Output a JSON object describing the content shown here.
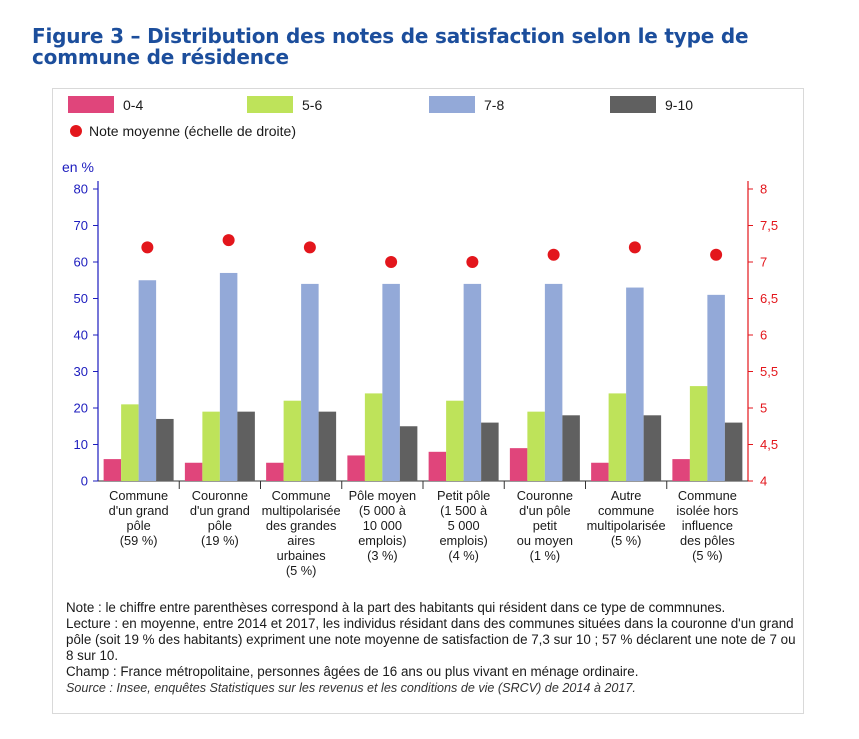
{
  "title": "Figure 3 – Distribution des notes de satisfaction selon le type de commune de résidence",
  "colors": {
    "s0": "#e0457b",
    "s1": "#bee35a",
    "s2": "#93a9d8",
    "s3": "#606060",
    "dot": "#e3161c",
    "left_axis": "#1c1cbe",
    "right_axis": "#e3161c",
    "title": "#1c4e9c"
  },
  "chart_data": {
    "type": "bar",
    "left_unit": "en %",
    "ylim": [
      0,
      80
    ],
    "yticks": [
      "0",
      "10",
      "20",
      "30",
      "40",
      "50",
      "60",
      "70",
      "80"
    ],
    "y2lim": [
      4,
      8
    ],
    "y2ticks": [
      "4",
      "4,5",
      "5",
      "5,5",
      "6",
      "6,5",
      "7",
      "7,5",
      "8"
    ],
    "grid": false,
    "legend_position": "top",
    "categories": [
      [
        "Commune",
        "d'un grand",
        "pôle",
        "(59 %)"
      ],
      [
        "Couronne",
        "d'un grand",
        "pôle",
        "(19 %)"
      ],
      [
        "Commune",
        "multipolarisée",
        "des grandes",
        "aires",
        "urbaines",
        "(5 %)"
      ],
      [
        "Pôle moyen",
        "(5 000 à",
        "10 000",
        "emplois)",
        "(3 %)"
      ],
      [
        "Petit pôle",
        "(1 500 à",
        "5 000",
        "emplois)",
        "(4 %)"
      ],
      [
        "Couronne",
        "d'un pôle",
        "petit",
        "ou moyen",
        "(1 %)"
      ],
      [
        "Autre",
        "commune",
        "multipolarisée",
        "(5 %)"
      ],
      [
        "Commune",
        "isolée hors",
        "influence",
        "des pôles",
        "(5 %)"
      ]
    ],
    "series": [
      {
        "name": "0-4",
        "values": [
          6,
          5,
          5,
          7,
          8,
          9,
          5,
          6
        ]
      },
      {
        "name": "5-6",
        "values": [
          21,
          19,
          22,
          24,
          22,
          19,
          24,
          26
        ]
      },
      {
        "name": "7-8",
        "values": [
          55,
          57,
          54,
          54,
          54,
          54,
          53,
          51
        ]
      },
      {
        "name": "9-10",
        "values": [
          17,
          19,
          19,
          15,
          16,
          18,
          18,
          16
        ]
      }
    ],
    "average": {
      "name": "Note moyenne (échelle de droite)",
      "values": [
        7.2,
        7.3,
        7.2,
        7.0,
        7.0,
        7.1,
        7.2,
        7.1
      ]
    }
  },
  "notes": {
    "note": "Note : le chiffre entre parenthèses correspond à la part des habitants qui résident dans ce type de commnunes.",
    "lecture": "Lecture : en moyenne, entre 2014 et 2017, les individus résidant dans des communes situées dans la couronne d'un grand pôle (soit 19 % des habitants) expriment une note moyenne de satisfaction de 7,3 sur 10 ; 57 % déclarent une note de 7 ou 8 sur 10.",
    "champ": "Champ : France métropolitaine, personnes âgées de 16 ans ou plus vivant en ménage ordinaire.",
    "source": "Source : Insee, enquêtes Statistiques sur les revenus et les conditions de vie (SRCV) de 2014 à 2017."
  }
}
